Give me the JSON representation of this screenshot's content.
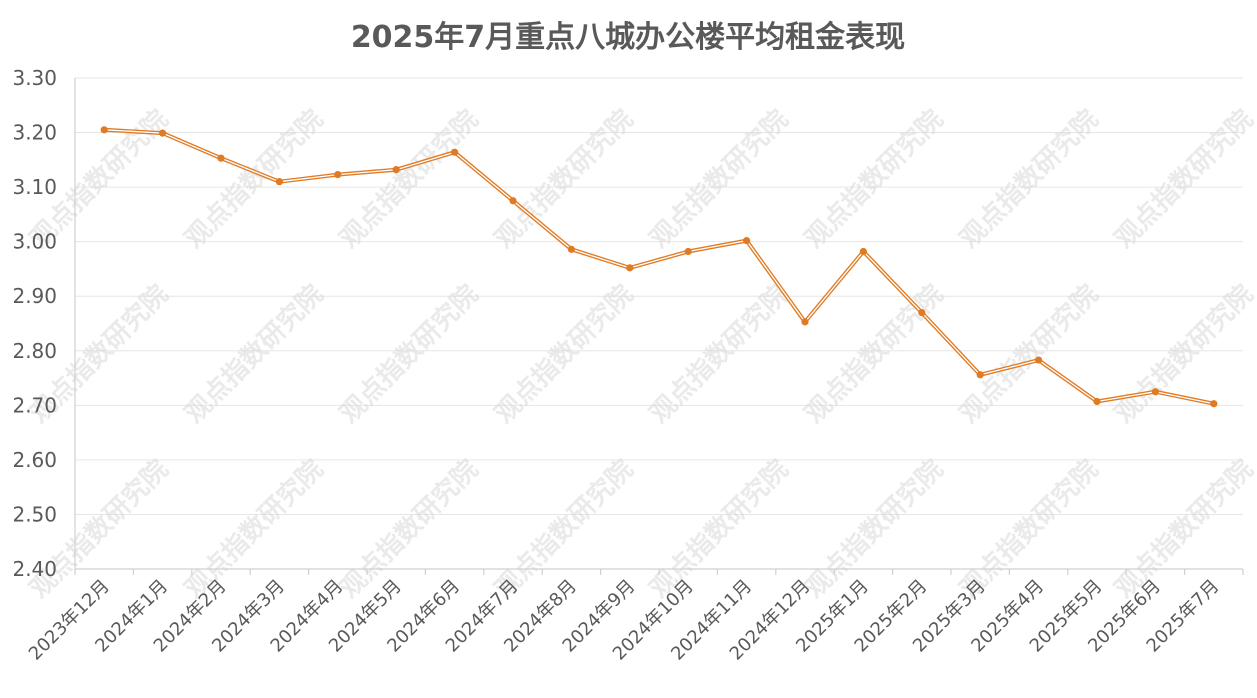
{
  "chart_data": {
    "type": "line",
    "title": "2025年7月重点八城办公楼平均租金表现",
    "xlabel": "",
    "ylabel": "",
    "ylim": [
      2.4,
      3.3
    ],
    "yticks": [
      "2.40",
      "2.50",
      "2.60",
      "2.70",
      "2.80",
      "2.90",
      "3.00",
      "3.10",
      "3.20",
      "3.30"
    ],
    "grid": true,
    "legend": "none",
    "categories": [
      "2023年12月",
      "2024年1月",
      "2024年2月",
      "2024年3月",
      "2024年4月",
      "2024年5月",
      "2024年6月",
      "2024年7月",
      "2024年8月",
      "2024年9月",
      "2024年10月",
      "2024年11月",
      "2024年12月",
      "2025年1月",
      "2025年2月",
      "2025年3月",
      "2025年4月",
      "2025年5月",
      "2025年6月",
      "2025年7月"
    ],
    "series": [
      {
        "values": [
          3.205,
          3.199,
          3.153,
          3.11,
          3.123,
          3.132,
          3.164,
          3.075,
          2.986,
          2.952,
          2.982,
          3.002,
          2.853,
          2.982,
          2.87,
          2.756,
          2.783,
          2.707,
          2.725,
          2.703
        ],
        "color": "#E07B24"
      }
    ]
  },
  "watermark": "观点指数研究院"
}
